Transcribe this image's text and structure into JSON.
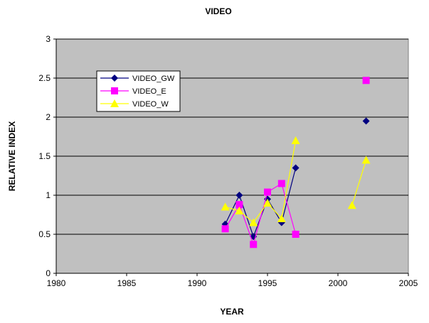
{
  "chart_data": {
    "type": "line",
    "title": "VIDEO",
    "xlabel": "YEAR",
    "ylabel": "RELATIVE INDEX",
    "xlim": [
      1980,
      2005
    ],
    "ylim": [
      0,
      3
    ],
    "x_ticks": [
      "1980",
      "1985",
      "1990",
      "1995",
      "2000",
      "2005"
    ],
    "y_ticks": [
      "0",
      "0.5",
      "1",
      "1.5",
      "2",
      "2.5",
      "3"
    ],
    "grid": "horizontal",
    "legend_position": "top-left",
    "plot_background": "#c0c0c0",
    "series": [
      {
        "name": "VIDEO_GW",
        "color": "#000080",
        "marker": "diamond",
        "segments": [
          [
            [
              1992,
              0.63
            ],
            [
              1993,
              1.0
            ],
            [
              1994,
              0.47
            ],
            [
              1995,
              0.95
            ],
            [
              1996,
              0.65
            ],
            [
              1997,
              1.35
            ]
          ],
          [
            [
              2002,
              1.95
            ]
          ]
        ]
      },
      {
        "name": "VIDEO_E",
        "color": "#ff00ff",
        "marker": "square",
        "segments": [
          [
            [
              1992,
              0.57
            ],
            [
              1993,
              0.88
            ],
            [
              1994,
              0.37
            ],
            [
              1995,
              1.04
            ],
            [
              1996,
              1.15
            ],
            [
              1997,
              0.5
            ]
          ],
          [
            [
              2002,
              2.47
            ]
          ]
        ]
      },
      {
        "name": "VIDEO_W",
        "color": "#ffff00",
        "marker": "triangle",
        "segments": [
          [
            [
              1992,
              0.85
            ],
            [
              1993,
              0.8
            ],
            [
              1994,
              0.65
            ],
            [
              1995,
              0.9
            ],
            [
              1996,
              0.7
            ],
            [
              1997,
              1.7
            ]
          ],
          [
            [
              2001,
              0.87
            ],
            [
              2002,
              1.45
            ]
          ]
        ]
      }
    ]
  }
}
